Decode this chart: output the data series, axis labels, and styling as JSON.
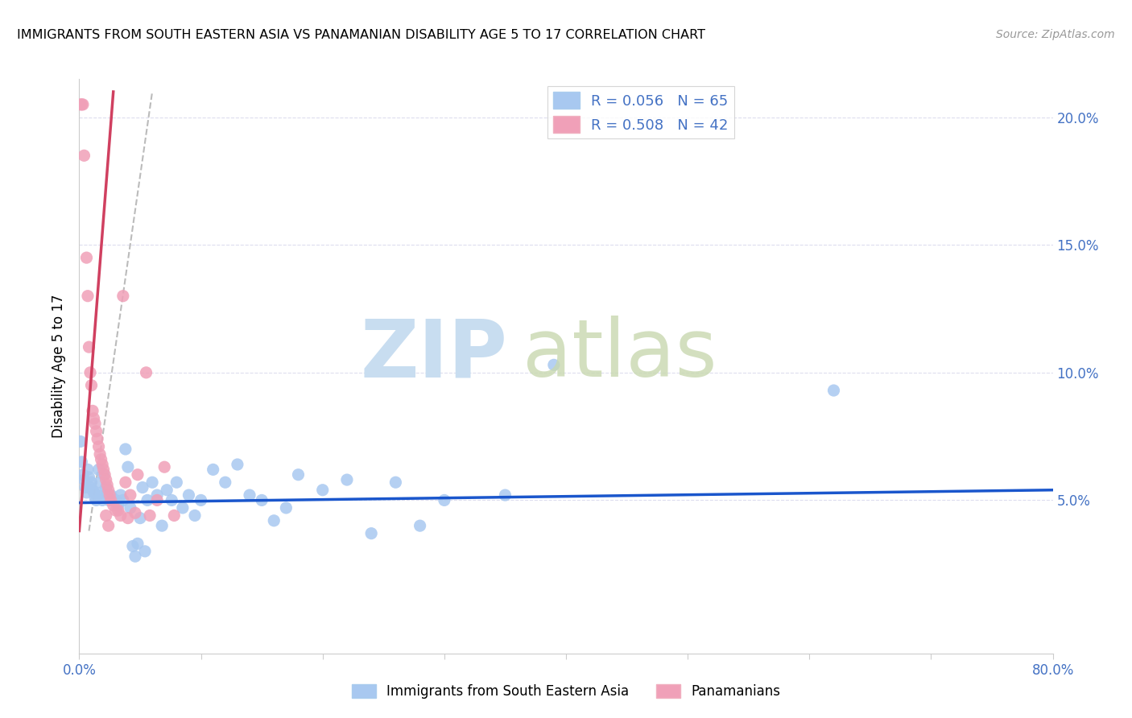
{
  "title": "IMMIGRANTS FROM SOUTH EASTERN ASIA VS PANAMANIAN DISABILITY AGE 5 TO 17 CORRELATION CHART",
  "source": "Source: ZipAtlas.com",
  "ylabel": "Disability Age 5 to 17",
  "yticks": [
    0.0,
    0.05,
    0.1,
    0.15,
    0.2
  ],
  "ytick_labels": [
    "",
    "5.0%",
    "10.0%",
    "15.0%",
    "20.0%"
  ],
  "xlim": [
    0.0,
    0.8
  ],
  "ylim": [
    -0.01,
    0.215
  ],
  "legend_r1": "R = 0.056",
  "legend_n1": "N = 65",
  "legend_r2": "R = 0.508",
  "legend_n2": "N = 42",
  "blue_color": "#a8c8f0",
  "pink_color": "#f0a0b8",
  "line_blue": "#1a56cc",
  "line_pink": "#d04060",
  "blue_scatter": [
    [
      0.001,
      0.073
    ],
    [
      0.002,
      0.065
    ],
    [
      0.003,
      0.06
    ],
    [
      0.004,
      0.058
    ],
    [
      0.005,
      0.055
    ],
    [
      0.006,
      0.053
    ],
    [
      0.007,
      0.062
    ],
    [
      0.008,
      0.059
    ],
    [
      0.009,
      0.055
    ],
    [
      0.01,
      0.057
    ],
    [
      0.011,
      0.054
    ],
    [
      0.012,
      0.053
    ],
    [
      0.013,
      0.051
    ],
    [
      0.014,
      0.05
    ],
    [
      0.015,
      0.052
    ],
    [
      0.016,
      0.062
    ],
    [
      0.017,
      0.057
    ],
    [
      0.018,
      0.053
    ],
    [
      0.019,
      0.05
    ],
    [
      0.02,
      0.06
    ],
    [
      0.022,
      0.055
    ],
    [
      0.024,
      0.05
    ],
    [
      0.026,
      0.052
    ],
    [
      0.028,
      0.05
    ],
    [
      0.03,
      0.05
    ],
    [
      0.032,
      0.048
    ],
    [
      0.034,
      0.052
    ],
    [
      0.036,
      0.05
    ],
    [
      0.038,
      0.07
    ],
    [
      0.04,
      0.063
    ],
    [
      0.042,
      0.047
    ],
    [
      0.044,
      0.032
    ],
    [
      0.046,
      0.028
    ],
    [
      0.048,
      0.033
    ],
    [
      0.05,
      0.043
    ],
    [
      0.052,
      0.055
    ],
    [
      0.054,
      0.03
    ],
    [
      0.056,
      0.05
    ],
    [
      0.06,
      0.057
    ],
    [
      0.064,
      0.052
    ],
    [
      0.068,
      0.04
    ],
    [
      0.072,
      0.054
    ],
    [
      0.076,
      0.05
    ],
    [
      0.08,
      0.057
    ],
    [
      0.085,
      0.047
    ],
    [
      0.09,
      0.052
    ],
    [
      0.095,
      0.044
    ],
    [
      0.1,
      0.05
    ],
    [
      0.11,
      0.062
    ],
    [
      0.12,
      0.057
    ],
    [
      0.13,
      0.064
    ],
    [
      0.14,
      0.052
    ],
    [
      0.15,
      0.05
    ],
    [
      0.16,
      0.042
    ],
    [
      0.17,
      0.047
    ],
    [
      0.18,
      0.06
    ],
    [
      0.2,
      0.054
    ],
    [
      0.22,
      0.058
    ],
    [
      0.24,
      0.037
    ],
    [
      0.26,
      0.057
    ],
    [
      0.28,
      0.04
    ],
    [
      0.3,
      0.05
    ],
    [
      0.35,
      0.052
    ],
    [
      0.39,
      0.103
    ],
    [
      0.62,
      0.093
    ]
  ],
  "pink_scatter": [
    [
      0.001,
      0.205
    ],
    [
      0.002,
      0.205
    ],
    [
      0.003,
      0.205
    ],
    [
      0.004,
      0.185
    ],
    [
      0.006,
      0.145
    ],
    [
      0.007,
      0.13
    ],
    [
      0.008,
      0.11
    ],
    [
      0.009,
      0.1
    ],
    [
      0.01,
      0.095
    ],
    [
      0.011,
      0.085
    ],
    [
      0.012,
      0.082
    ],
    [
      0.013,
      0.08
    ],
    [
      0.014,
      0.077
    ],
    [
      0.015,
      0.074
    ],
    [
      0.016,
      0.071
    ],
    [
      0.017,
      0.068
    ],
    [
      0.018,
      0.066
    ],
    [
      0.019,
      0.064
    ],
    [
      0.02,
      0.062
    ],
    [
      0.021,
      0.06
    ],
    [
      0.022,
      0.058
    ],
    [
      0.023,
      0.056
    ],
    [
      0.024,
      0.054
    ],
    [
      0.025,
      0.052
    ],
    [
      0.026,
      0.05
    ],
    [
      0.028,
      0.048
    ],
    [
      0.03,
      0.046
    ],
    [
      0.032,
      0.046
    ],
    [
      0.034,
      0.044
    ],
    [
      0.036,
      0.13
    ],
    [
      0.038,
      0.057
    ],
    [
      0.04,
      0.043
    ],
    [
      0.042,
      0.052
    ],
    [
      0.046,
      0.045
    ],
    [
      0.048,
      0.06
    ],
    [
      0.055,
      0.1
    ],
    [
      0.058,
      0.044
    ],
    [
      0.064,
      0.05
    ],
    [
      0.07,
      0.063
    ],
    [
      0.078,
      0.044
    ],
    [
      0.022,
      0.044
    ],
    [
      0.024,
      0.04
    ]
  ],
  "blue_line": [
    [
      0.0,
      0.049
    ],
    [
      0.8,
      0.054
    ]
  ],
  "pink_line": [
    [
      0.0,
      0.038
    ],
    [
      0.028,
      0.21
    ]
  ],
  "gray_dashed_line": [
    [
      0.008,
      0.038
    ],
    [
      0.06,
      0.21
    ]
  ]
}
